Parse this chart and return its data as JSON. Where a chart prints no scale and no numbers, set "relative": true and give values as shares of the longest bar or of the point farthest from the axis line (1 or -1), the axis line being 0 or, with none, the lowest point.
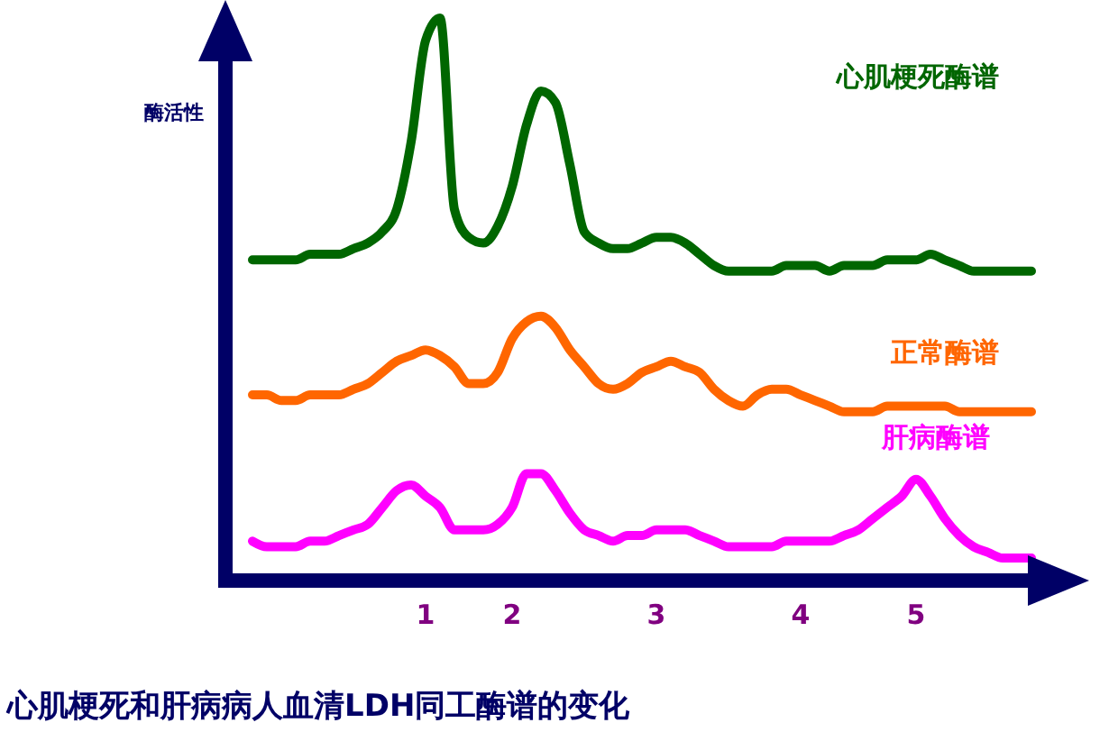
{
  "chart_data": {
    "type": "line",
    "relative": true,
    "title": "心肌梗死和肝病病人血清LDH同工酶谱的变化",
    "ylabel": "酶活性",
    "legend": false,
    "marker": "none",
    "line_style": "solid",
    "categories": [
      null,
      null,
      null,
      null,
      null,
      null,
      null,
      null,
      null,
      null,
      null,
      null,
      "1",
      null,
      null,
      null,
      null,
      null,
      "2",
      null,
      null,
      null,
      null,
      null,
      null,
      null,
      null,
      null,
      "3",
      null,
      null,
      null,
      null,
      null,
      null,
      null,
      null,
      null,
      "4",
      null,
      null,
      null,
      null,
      null,
      null,
      null,
      "5",
      null,
      null,
      null,
      null,
      null,
      null,
      null,
      null
    ],
    "series": [
      {
        "name": "心肌梗死酶谱",
        "color": "#006600",
        "values": [
          0.57,
          0.57,
          0.57,
          0.57,
          0.58,
          0.58,
          0.58,
          0.59,
          0.6,
          0.62,
          0.66,
          0.78,
          0.96,
          1,
          0.66,
          0.61,
          0.6,
          0.63,
          0.7,
          0.81,
          0.87,
          0.85,
          0.74,
          0.62,
          0.6,
          0.59,
          0.59,
          0.6,
          0.61,
          0.61,
          0.6,
          0.58,
          0.56,
          0.55,
          0.55,
          0.55,
          0.55,
          0.56,
          0.56,
          0.56,
          0.55,
          0.56,
          0.56,
          0.56,
          0.57,
          0.57,
          0.57,
          0.58,
          0.57,
          0.56,
          0.55,
          0.55,
          0.55,
          0.55,
          0.55
        ]
      },
      {
        "name": "正常酶谱",
        "color": "#ff6600",
        "values": [
          0.33,
          0.33,
          0.32,
          0.32,
          0.33,
          0.33,
          0.33,
          0.34,
          0.35,
          0.37,
          0.39,
          0.4,
          0.41,
          0.4,
          0.38,
          0.35,
          0.35,
          0.37,
          0.43,
          0.46,
          0.47,
          0.45,
          0.41,
          0.38,
          0.35,
          0.34,
          0.35,
          0.37,
          0.38,
          0.39,
          0.38,
          0.37,
          0.34,
          0.32,
          0.31,
          0.33,
          0.34,
          0.34,
          0.33,
          0.32,
          0.31,
          0.3,
          0.3,
          0.3,
          0.31,
          0.31,
          0.31,
          0.31,
          0.31,
          0.3,
          0.3,
          0.3,
          0.3,
          0.3,
          0.3
        ]
      },
      {
        "name": "肝病酶谱",
        "color": "#ff00ff",
        "values": [
          0.07,
          0.06,
          0.06,
          0.06,
          0.07,
          0.07,
          0.08,
          0.09,
          0.1,
          0.13,
          0.16,
          0.17,
          0.15,
          0.13,
          0.09,
          0.09,
          0.09,
          0.1,
          0.13,
          0.19,
          0.19,
          0.16,
          0.12,
          0.09,
          0.08,
          0.07,
          0.08,
          0.08,
          0.09,
          0.09,
          0.09,
          0.08,
          0.07,
          0.06,
          0.06,
          0.06,
          0.06,
          0.07,
          0.07,
          0.07,
          0.07,
          0.08,
          0.09,
          0.11,
          0.13,
          0.15,
          0.18,
          0.15,
          0.11,
          0.08,
          0.06,
          0.05,
          0.04,
          0.04,
          0.04
        ]
      }
    ]
  }
}
